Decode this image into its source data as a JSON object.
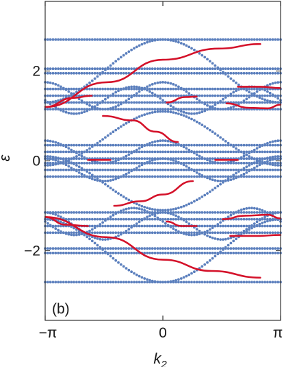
{
  "chart_data": {
    "type": "scatter",
    "panel_label": "(b)",
    "xlabel": {
      "main": "k",
      "sub": "2"
    },
    "ylabel": "ε",
    "xlim": [
      -3.1416,
      3.1416
    ],
    "ylim": [
      -3.55,
      3.55
    ],
    "x_ticks": [
      {
        "value": -3.1416,
        "label": "−π"
      },
      {
        "value": 0,
        "label": "0"
      },
      {
        "value": 3.1416,
        "label": "π"
      }
    ],
    "y_ticks": [
      {
        "value": 2,
        "label": "2"
      },
      {
        "value": 0,
        "label": "0"
      },
      {
        "value": -2,
        "label": "−2"
      }
    ],
    "grid": false,
    "colors": {
      "bulk": "#5b7fbd",
      "edge": "#d4122a",
      "frame": "#333333"
    },
    "series": [
      {
        "kind": "bulk-bands",
        "color": "#5b7fbd",
        "flat_levels": [
          2.7,
          2.05,
          1.95,
          1.6,
          1.45,
          1.3,
          1.15,
          0.35,
          0.2,
          0.05,
          -0.05,
          -0.2,
          -0.35,
          -1.15,
          -1.3,
          -1.45,
          -1.6,
          -1.95,
          -2.05,
          -2.7
        ],
        "bands": [
          {
            "center": 2.0,
            "amp": 0.7,
            "wave": "cos",
            "freq": 1
          },
          {
            "center": 1.45,
            "amp": 0.3,
            "wave": "cos",
            "freq": 2
          },
          {
            "center": 1.35,
            "amp": 0.3,
            "wave": "cos",
            "freq": 2,
            "phase": 1.5708
          },
          {
            "center": 0.2,
            "amp": 0.25,
            "wave": "cos",
            "freq": 2
          },
          {
            "center": -0.2,
            "amp": 0.25,
            "wave": "cos",
            "freq": 2
          },
          {
            "center": 0.5,
            "amp": 0.6,
            "wave": "cos",
            "freq": 1
          },
          {
            "center": -0.5,
            "amp": -0.6,
            "wave": "cos",
            "freq": 1
          },
          {
            "center": -1.35,
            "amp": 0.3,
            "wave": "cos",
            "freq": 2,
            "phase": 1.5708
          },
          {
            "center": -1.45,
            "amp": 0.3,
            "wave": "cos",
            "freq": 2
          },
          {
            "center": -2.0,
            "amp": -0.7,
            "wave": "cos",
            "freq": 1
          }
        ]
      },
      {
        "kind": "edge-states",
        "color": "#d4122a",
        "curves": [
          {
            "x": [
              -3.14,
              -1.5,
              0.0,
              1.5,
              2.6
            ],
            "y": [
              1.2,
              1.75,
              2.25,
              2.5,
              2.6
            ]
          },
          {
            "x": [
              -3.14,
              -2.4,
              -1.9
            ],
            "y": [
              1.2,
              1.4,
              1.45
            ]
          },
          {
            "x": [
              0.1,
              0.6,
              0.9
            ],
            "y": [
              1.3,
              1.42,
              1.43
            ]
          },
          {
            "x": [
              2.0,
              2.6,
              3.14
            ],
            "y": [
              1.65,
              1.65,
              1.62
            ]
          },
          {
            "x": [
              1.7,
              2.3,
              2.8,
              3.14
            ],
            "y": [
              1.28,
              1.18,
              1.17,
              1.25
            ]
          },
          {
            "x": [
              -1.6,
              -0.8,
              -0.2,
              0.4
            ],
            "y": [
              1.0,
              0.9,
              0.65,
              0.42
            ]
          },
          {
            "x": [
              -2.0,
              -1.7,
              -1.4
            ],
            "y": [
              0.02,
              0.02,
              0.02
            ]
          },
          {
            "x": [
              1.4,
              1.7,
              2.0
            ],
            "y": [
              0.02,
              0.02,
              0.02
            ]
          },
          {
            "x": [
              -1.3,
              -0.6,
              0.0,
              0.8
            ],
            "y": [
              -1.0,
              -0.9,
              -0.75,
              -0.45
            ]
          },
          {
            "x": [
              -3.14,
              -2.6,
              -2.0
            ],
            "y": [
              -1.25,
              -1.42,
              -1.45
            ]
          },
          {
            "x": [
              0.1,
              0.5,
              0.9
            ],
            "y": [
              -1.35,
              -1.45,
              -1.45
            ]
          },
          {
            "x": [
              1.6,
              2.2,
              2.8,
              3.14
            ],
            "y": [
              -1.3,
              -1.22,
              -1.2,
              -1.28
            ]
          },
          {
            "x": [
              1.8,
              2.5,
              3.14
            ],
            "y": [
              -1.67,
              -1.67,
              -1.65
            ]
          },
          {
            "x": [
              -3.14,
              -1.5,
              0.0,
              1.3,
              2.6
            ],
            "y": [
              -1.25,
              -1.7,
              -2.2,
              -2.45,
              -2.6
            ]
          }
        ]
      }
    ]
  }
}
